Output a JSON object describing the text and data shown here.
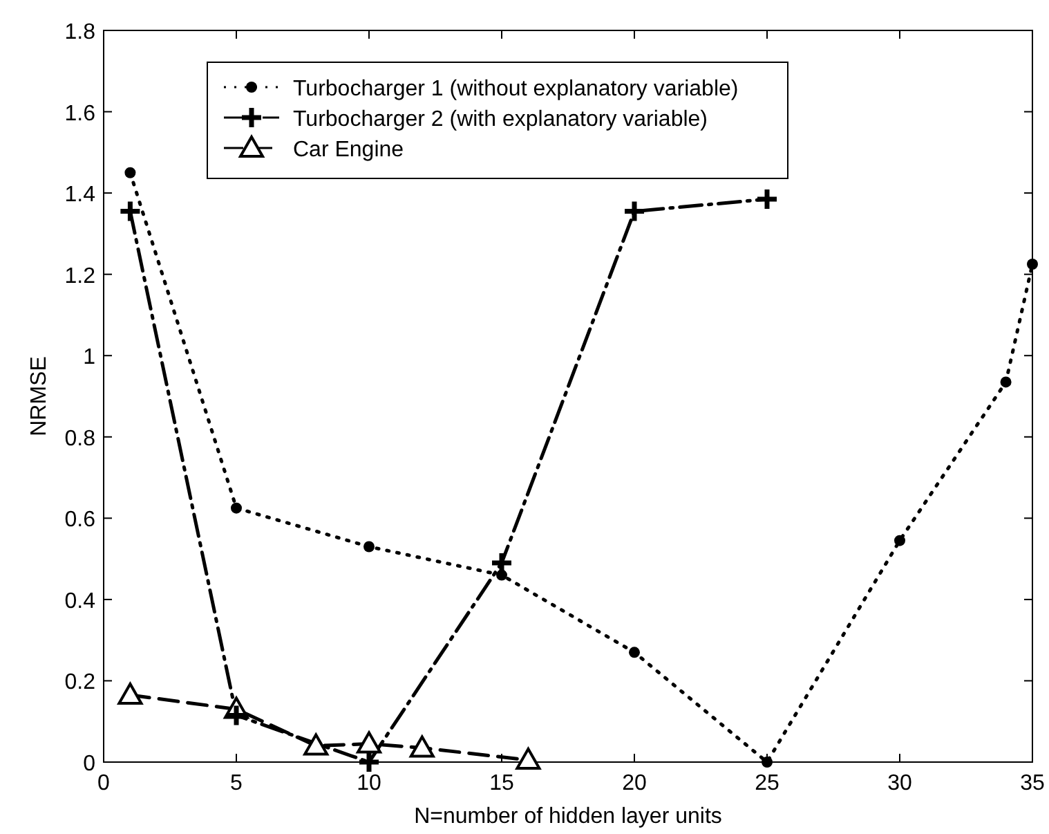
{
  "chart_data": {
    "type": "line",
    "xlabel": "N=number of hidden layer units",
    "ylabel": "NRMSE",
    "xlim": [
      0,
      35
    ],
    "ylim": [
      0,
      1.8
    ],
    "xticks": [
      0,
      5,
      10,
      15,
      20,
      25,
      30,
      35
    ],
    "yticks": [
      0,
      0.2,
      0.4,
      0.6,
      0.8,
      1,
      1.2,
      1.4,
      1.6,
      1.8
    ],
    "grid": false,
    "legend": "top",
    "series": [
      {
        "name": "Turbocharger 1 (without explanatory variable)",
        "color": "#000000",
        "marker": "circle",
        "line_style": "dotted",
        "x": [
          1,
          5,
          10,
          15,
          20,
          25,
          30,
          34,
          35
        ],
        "values": [
          1.45,
          0.625,
          0.53,
          0.46,
          0.27,
          0,
          0.545,
          0.935,
          1.225
        ]
      },
      {
        "name": "Turbocharger 2 (with explanatory variable)",
        "color": "#000000",
        "marker": "cross",
        "line_style": "dashdot",
        "x": [
          1,
          5,
          10,
          15,
          20,
          25
        ],
        "values": [
          1.355,
          0.115,
          0,
          0.49,
          1.355,
          1.385
        ]
      },
      {
        "name": "Car Engine",
        "color": "#000000",
        "marker": "triangle",
        "line_style": "dashed",
        "x": [
          1,
          5,
          8,
          10,
          12,
          16
        ],
        "values": [
          0.165,
          0.13,
          0.04,
          0.045,
          0.035,
          0.005
        ]
      }
    ]
  }
}
